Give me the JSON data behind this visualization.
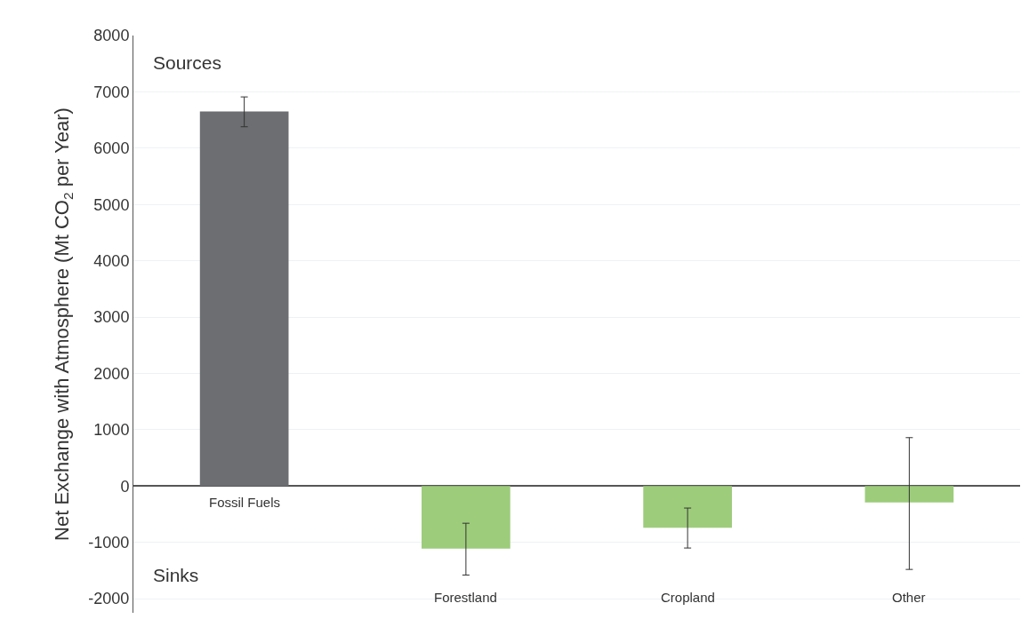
{
  "chart_data": {
    "type": "bar",
    "ylabel": "Net Exchange with Atmosphere (Mt CO$_{2}$ per Year)",
    "categories": [
      "Fossil Fuels",
      "Forestland",
      "Cropland",
      "Other"
    ],
    "values": [
      6650,
      -1110,
      -740,
      -290
    ],
    "colors": [
      "#6d6e71",
      "#9dcc7b",
      "#9dcc7b",
      "#9dcc7b"
    ],
    "errors": [
      [
        6380,
        6910
      ],
      [
        -1580,
        -660
      ],
      [
        -1100,
        -390
      ],
      [
        -1480,
        860
      ]
    ],
    "ylim": [
      -2250,
      8000
    ],
    "yticks": [
      -2000,
      -1000,
      0,
      1000,
      2000,
      3000,
      4000,
      5000,
      6000,
      7000,
      8000
    ],
    "grid": "y",
    "annotations": [
      "Sources",
      "Sinks"
    ]
  }
}
